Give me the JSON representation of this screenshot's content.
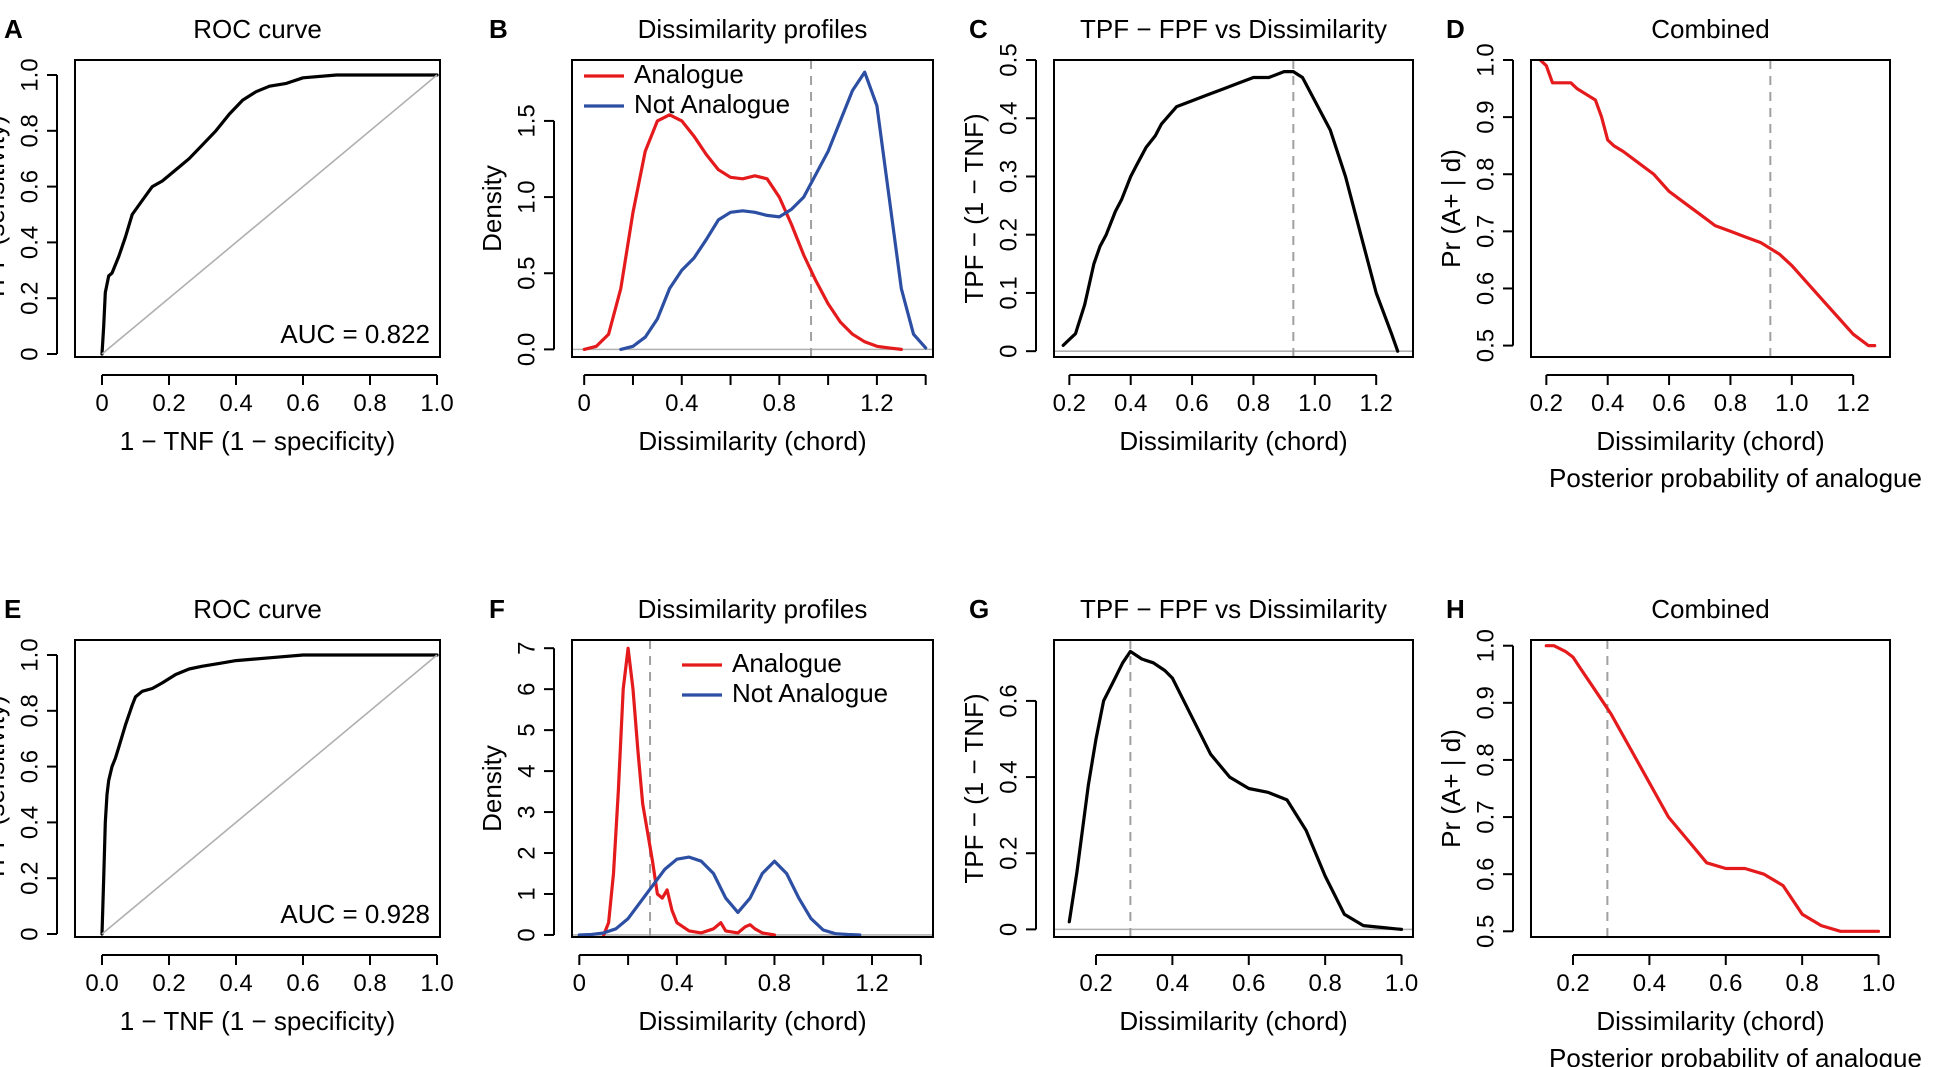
{
  "chart_data": [
    {
      "panel": "A",
      "type": "line",
      "title": "ROC curve",
      "xlabel": "1 − TNF (1 − specificity)",
      "ylabel": "TPF (sensitivity)",
      "xlim": [
        0,
        1
      ],
      "ylim": [
        0,
        1
      ],
      "xticks": [
        0,
        0.2,
        0.4,
        0.6,
        0.8,
        1.0
      ],
      "xticklabels": [
        "0",
        "0.2",
        "0.4",
        "0.6",
        "0.8",
        "1.0"
      ],
      "yticks": [
        0,
        0.2,
        0.4,
        0.6,
        0.8,
        1.0
      ],
      "yticklabels": [
        "0",
        "0.2",
        "0.4",
        "0.6",
        "0.8",
        "1.0"
      ],
      "annotation": "AUC = 0.822",
      "series": [
        {
          "name": "ROC",
          "color": "#000000",
          "x": [
            0,
            0.005,
            0.01,
            0.02,
            0.03,
            0.05,
            0.07,
            0.09,
            0.12,
            0.15,
            0.18,
            0.22,
            0.26,
            0.3,
            0.34,
            0.38,
            0.42,
            0.46,
            0.5,
            0.55,
            0.6,
            0.7,
            0.8,
            0.9,
            1.0
          ],
          "y": [
            0,
            0.1,
            0.22,
            0.28,
            0.29,
            0.35,
            0.42,
            0.5,
            0.55,
            0.6,
            0.62,
            0.66,
            0.7,
            0.75,
            0.8,
            0.86,
            0.91,
            0.94,
            0.96,
            0.97,
            0.99,
            1.0,
            1.0,
            1.0,
            1.0
          ]
        },
        {
          "name": "reference",
          "color": "#b0b0b0",
          "reference": true,
          "x": [
            0,
            1
          ],
          "y": [
            0,
            1
          ]
        }
      ]
    },
    {
      "panel": "B",
      "type": "line",
      "title": "Dissimilarity profiles",
      "xlabel": "Dissimilarity (chord)",
      "ylabel": "Density",
      "xlim": [
        -0.05,
        1.43
      ],
      "ylim": [
        -0.05,
        1.9
      ],
      "xticks": [
        0,
        0.4,
        0.8,
        1.2
      ],
      "xticklabels": [
        "0",
        "0.4",
        "0.8",
        "1.2"
      ],
      "minor_xticks": [
        0.2,
        0.6,
        1.0,
        1.4
      ],
      "yticks": [
        0,
        0.5,
        1.0,
        1.5
      ],
      "yticklabels": [
        "0.0",
        "0.5",
        "1.0",
        "1.5"
      ],
      "hline": 0,
      "vline": 0.93,
      "legend": [
        "Analogue",
        "Not Analogue"
      ],
      "legend_position": "top-left",
      "series": [
        {
          "name": "Analogue",
          "color": "#e41a1c",
          "x": [
            0,
            0.05,
            0.1,
            0.15,
            0.2,
            0.25,
            0.3,
            0.35,
            0.4,
            0.45,
            0.5,
            0.55,
            0.6,
            0.65,
            0.7,
            0.75,
            0.8,
            0.85,
            0.9,
            0.95,
            1.0,
            1.05,
            1.1,
            1.15,
            1.2,
            1.25,
            1.3
          ],
          "y": [
            0,
            0.02,
            0.1,
            0.4,
            0.9,
            1.3,
            1.5,
            1.54,
            1.5,
            1.4,
            1.28,
            1.18,
            1.13,
            1.12,
            1.14,
            1.12,
            1.0,
            0.82,
            0.62,
            0.45,
            0.3,
            0.18,
            0.1,
            0.05,
            0.02,
            0.01,
            0.0
          ]
        },
        {
          "name": "Not Analogue",
          "color": "#2c4ea3",
          "x": [
            0.15,
            0.2,
            0.25,
            0.3,
            0.35,
            0.4,
            0.45,
            0.5,
            0.55,
            0.6,
            0.65,
            0.7,
            0.75,
            0.8,
            0.85,
            0.9,
            0.95,
            1.0,
            1.05,
            1.1,
            1.15,
            1.2,
            1.25,
            1.3,
            1.35,
            1.4
          ],
          "y": [
            0,
            0.02,
            0.08,
            0.2,
            0.4,
            0.52,
            0.6,
            0.72,
            0.85,
            0.9,
            0.91,
            0.9,
            0.88,
            0.87,
            0.92,
            1.0,
            1.15,
            1.3,
            1.5,
            1.7,
            1.82,
            1.6,
            1.0,
            0.4,
            0.1,
            0.01
          ]
        }
      ]
    },
    {
      "panel": "C",
      "type": "line",
      "title": "TPF − FPF vs Dissimilarity",
      "xlabel": "Dissimilarity (chord)",
      "ylabel": "TPF − (1 − TNF)",
      "xlim": [
        0.15,
        1.32
      ],
      "ylim": [
        -0.01,
        0.5
      ],
      "xticks": [
        0.2,
        0.4,
        0.6,
        0.8,
        1.0,
        1.2
      ],
      "xticklabels": [
        "0.2",
        "0.4",
        "0.6",
        "0.8",
        "1.0",
        "1.2"
      ],
      "yticks": [
        0,
        0.1,
        0.2,
        0.3,
        0.4,
        0.5
      ],
      "yticklabels": [
        "0",
        "0.1",
        "0.2",
        "0.3",
        "0.4",
        "0.5"
      ],
      "hline": 0,
      "vline": 0.93,
      "series": [
        {
          "name": "TPF − FPF",
          "color": "#000000",
          "x": [
            0.18,
            0.2,
            0.22,
            0.25,
            0.28,
            0.3,
            0.32,
            0.35,
            0.37,
            0.4,
            0.42,
            0.45,
            0.48,
            0.5,
            0.55,
            0.6,
            0.65,
            0.7,
            0.75,
            0.8,
            0.85,
            0.9,
            0.93,
            0.96,
            1.0,
            1.05,
            1.1,
            1.15,
            1.2,
            1.25,
            1.27
          ],
          "y": [
            0.01,
            0.02,
            0.03,
            0.08,
            0.15,
            0.18,
            0.2,
            0.24,
            0.26,
            0.3,
            0.32,
            0.35,
            0.37,
            0.39,
            0.42,
            0.43,
            0.44,
            0.45,
            0.46,
            0.47,
            0.47,
            0.48,
            0.48,
            0.47,
            0.43,
            0.38,
            0.3,
            0.2,
            0.1,
            0.03,
            0.0
          ]
        }
      ]
    },
    {
      "panel": "D",
      "type": "line",
      "title": "Combined",
      "xlabel": "Dissimilarity (chord)",
      "ylabel": "Pr (A+ | d)",
      "caption": "Posterior probability of analogue",
      "xlim": [
        0.15,
        1.32
      ],
      "ylim": [
        0.48,
        1.0
      ],
      "xticks": [
        0.2,
        0.4,
        0.6,
        0.8,
        1.0,
        1.2
      ],
      "xticklabels": [
        "0.2",
        "0.4",
        "0.6",
        "0.8",
        "1.0",
        "1.2"
      ],
      "yticks": [
        0.5,
        0.6,
        0.7,
        0.8,
        0.9,
        1.0
      ],
      "yticklabels": [
        "0.5",
        "0.6",
        "0.7",
        "0.8",
        "0.9",
        "1.0"
      ],
      "vline": 0.93,
      "series": [
        {
          "name": "Pr (A+ | d)",
          "color": "#e41a1c",
          "x": [
            0.18,
            0.2,
            0.22,
            0.25,
            0.28,
            0.3,
            0.33,
            0.36,
            0.38,
            0.4,
            0.42,
            0.45,
            0.5,
            0.55,
            0.6,
            0.65,
            0.7,
            0.75,
            0.8,
            0.85,
            0.9,
            0.93,
            0.96,
            1.0,
            1.05,
            1.1,
            1.15,
            1.2,
            1.25,
            1.27
          ],
          "y": [
            1.0,
            0.99,
            0.96,
            0.96,
            0.96,
            0.95,
            0.94,
            0.93,
            0.9,
            0.86,
            0.85,
            0.84,
            0.82,
            0.8,
            0.77,
            0.75,
            0.73,
            0.71,
            0.7,
            0.69,
            0.68,
            0.67,
            0.66,
            0.64,
            0.61,
            0.58,
            0.55,
            0.52,
            0.5,
            0.5
          ]
        }
      ]
    },
    {
      "panel": "E",
      "type": "line",
      "title": "ROC curve",
      "xlabel": "1 − TNF (1 − specificity)",
      "ylabel": "TPF (sensitivity)",
      "xlim": [
        0,
        1
      ],
      "ylim": [
        0,
        1
      ],
      "xticks": [
        0,
        0.2,
        0.4,
        0.6,
        0.8,
        1.0
      ],
      "xticklabels": [
        "0.0",
        "0.2",
        "0.4",
        "0.6",
        "0.8",
        "1.0"
      ],
      "yticks": [
        0,
        0.2,
        0.4,
        0.6,
        0.8,
        1.0
      ],
      "yticklabels": [
        "0",
        "0.2",
        "0.4",
        "0.6",
        "0.8",
        "1.0"
      ],
      "annotation": "AUC = 0.928",
      "series": [
        {
          "name": "ROC",
          "color": "#000000",
          "x": [
            0,
            0.005,
            0.01,
            0.015,
            0.02,
            0.03,
            0.04,
            0.05,
            0.07,
            0.09,
            0.1,
            0.12,
            0.15,
            0.18,
            0.22,
            0.26,
            0.3,
            0.35,
            0.4,
            0.5,
            0.6,
            0.7,
            0.8,
            0.9,
            1.0
          ],
          "y": [
            0,
            0.2,
            0.4,
            0.5,
            0.55,
            0.6,
            0.63,
            0.67,
            0.75,
            0.82,
            0.85,
            0.87,
            0.88,
            0.9,
            0.93,
            0.95,
            0.96,
            0.97,
            0.98,
            0.99,
            1.0,
            1.0,
            1.0,
            1.0,
            1.0
          ]
        },
        {
          "name": "reference",
          "color": "#b0b0b0",
          "reference": true,
          "x": [
            0,
            1
          ],
          "y": [
            0,
            1
          ]
        }
      ]
    },
    {
      "panel": "F",
      "type": "line",
      "title": "Dissimilarity profiles",
      "xlabel": "Dissimilarity (chord)",
      "ylabel": "Density",
      "xlim": [
        -0.03,
        1.45
      ],
      "ylim": [
        -0.05,
        7.2
      ],
      "xticks": [
        0,
        0.4,
        0.8,
        1.2
      ],
      "xticklabels": [
        "0",
        "0.4",
        "0.8",
        "1.2"
      ],
      "minor_xticks": [
        0.2,
        0.6,
        1.0,
        1.4
      ],
      "yticks": [
        0,
        1,
        2,
        3,
        4,
        5,
        6,
        7
      ],
      "yticklabels": [
        "0",
        "1",
        "2",
        "3",
        "4",
        "5",
        "6",
        "7"
      ],
      "hline": 0,
      "vline": 0.29,
      "legend": [
        "Analogue",
        "Not Analogue"
      ],
      "legend_position": "top-right",
      "series": [
        {
          "name": "Analogue",
          "color": "#e41a1c",
          "x": [
            0.1,
            0.12,
            0.14,
            0.16,
            0.18,
            0.2,
            0.22,
            0.24,
            0.26,
            0.28,
            0.3,
            0.32,
            0.34,
            0.36,
            0.38,
            0.4,
            0.45,
            0.5,
            0.55,
            0.58,
            0.6,
            0.65,
            0.68,
            0.7,
            0.72,
            0.75,
            0.8
          ],
          "y": [
            0,
            0.3,
            1.5,
            3.5,
            6.0,
            7.0,
            6.0,
            4.5,
            3.2,
            2.5,
            1.8,
            1.0,
            0.9,
            1.1,
            0.6,
            0.3,
            0.1,
            0.05,
            0.15,
            0.3,
            0.1,
            0.05,
            0.2,
            0.25,
            0.15,
            0.05,
            0.0
          ]
        },
        {
          "name": "Not Analogue",
          "color": "#2c4ea3",
          "x": [
            0.0,
            0.05,
            0.1,
            0.15,
            0.2,
            0.25,
            0.3,
            0.35,
            0.4,
            0.45,
            0.5,
            0.55,
            0.6,
            0.65,
            0.7,
            0.75,
            0.8,
            0.85,
            0.9,
            0.95,
            1.0,
            1.05,
            1.1,
            1.15
          ],
          "y": [
            0,
            0.01,
            0.05,
            0.15,
            0.4,
            0.8,
            1.2,
            1.6,
            1.85,
            1.9,
            1.8,
            1.5,
            0.9,
            0.55,
            0.9,
            1.5,
            1.8,
            1.5,
            0.9,
            0.4,
            0.12,
            0.03,
            0.01,
            0.0
          ]
        }
      ]
    },
    {
      "panel": "G",
      "type": "line",
      "title": "TPF − FPF vs Dissimilarity",
      "xlabel": "Dissimilarity (chord)",
      "ylabel": "TPF − (1 − TNF)",
      "xlim": [
        0.09,
        1.03
      ],
      "ylim": [
        -0.02,
        0.76
      ],
      "xticks": [
        0.2,
        0.4,
        0.6,
        0.8,
        1.0
      ],
      "xticklabels": [
        "0.2",
        "0.4",
        "0.6",
        "0.8",
        "1.0"
      ],
      "yticks": [
        0,
        0.2,
        0.4,
        0.6
      ],
      "yticklabels": [
        "0",
        "0.2",
        "0.4",
        "0.6"
      ],
      "hline": 0,
      "vline": 0.29,
      "series": [
        {
          "name": "TPF − FPF",
          "color": "#000000",
          "x": [
            0.13,
            0.15,
            0.18,
            0.2,
            0.22,
            0.25,
            0.27,
            0.29,
            0.32,
            0.35,
            0.38,
            0.4,
            0.45,
            0.5,
            0.55,
            0.6,
            0.65,
            0.7,
            0.75,
            0.8,
            0.85,
            0.9,
            0.95,
            1.0
          ],
          "y": [
            0.02,
            0.15,
            0.38,
            0.5,
            0.6,
            0.66,
            0.7,
            0.73,
            0.71,
            0.7,
            0.68,
            0.66,
            0.56,
            0.46,
            0.4,
            0.37,
            0.36,
            0.34,
            0.26,
            0.14,
            0.04,
            0.01,
            0.005,
            0.0
          ]
        }
      ]
    },
    {
      "panel": "H",
      "type": "line",
      "title": "Combined",
      "xlabel": "Dissimilarity (chord)",
      "ylabel": "Pr (A+ | d)",
      "caption": "Posterior probability of analogue",
      "xlim": [
        0.09,
        1.03
      ],
      "ylim": [
        0.49,
        1.01
      ],
      "xticks": [
        0.2,
        0.4,
        0.6,
        0.8,
        1.0
      ],
      "xticklabels": [
        "0.2",
        "0.4",
        "0.6",
        "0.8",
        "1.0"
      ],
      "yticks": [
        0.5,
        0.6,
        0.7,
        0.8,
        0.9,
        1.0
      ],
      "yticklabels": [
        "0.5",
        "0.6",
        "0.7",
        "0.8",
        "0.9",
        "1.0"
      ],
      "vline": 0.29,
      "series": [
        {
          "name": "Pr (A+ | d)",
          "color": "#e41a1c",
          "x": [
            0.13,
            0.15,
            0.18,
            0.2,
            0.22,
            0.25,
            0.28,
            0.3,
            0.35,
            0.4,
            0.45,
            0.5,
            0.55,
            0.6,
            0.65,
            0.7,
            0.75,
            0.8,
            0.85,
            0.9,
            0.95,
            1.0
          ],
          "y": [
            1.0,
            1.0,
            0.99,
            0.98,
            0.96,
            0.93,
            0.9,
            0.88,
            0.82,
            0.76,
            0.7,
            0.66,
            0.62,
            0.61,
            0.61,
            0.6,
            0.58,
            0.53,
            0.51,
            0.5,
            0.5,
            0.5
          ]
        }
      ]
    }
  ]
}
